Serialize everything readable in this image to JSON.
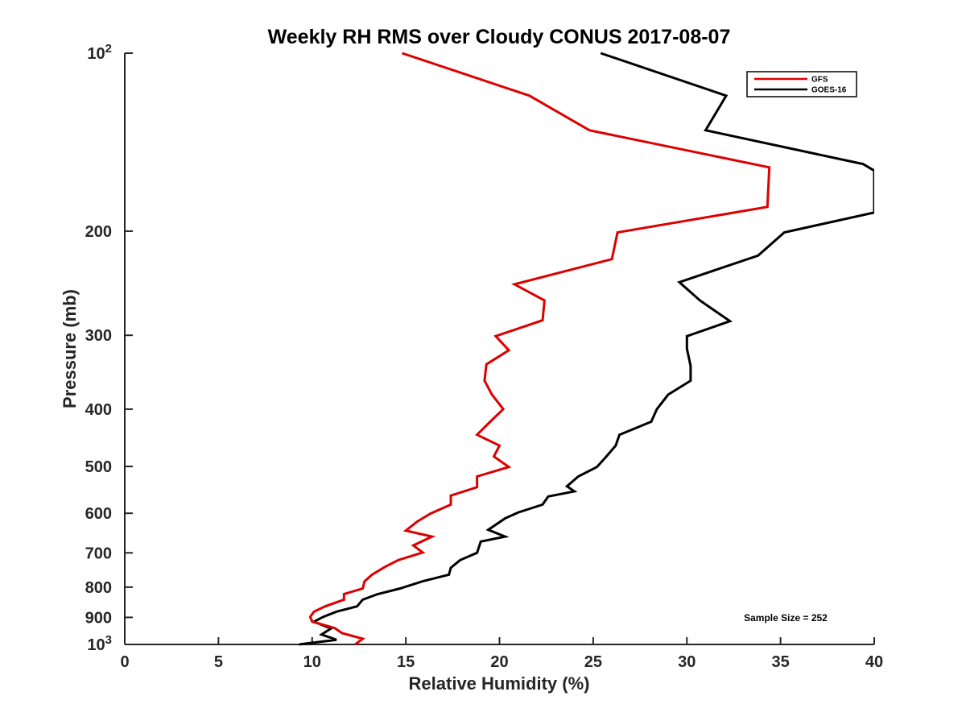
{
  "chart_data": {
    "type": "line",
    "title": "Weekly RH RMS over Cloudy CONUS 2017-08-07",
    "xlabel": "Relative Humidity (%)",
    "ylabel": "Pressure (mb)",
    "xlim": [
      0,
      40
    ],
    "ylim": [
      100,
      1000
    ],
    "y_scale": "log",
    "y_reversed": true,
    "grid": false,
    "legend_position": "top-right",
    "x_ticks": [
      0,
      5,
      10,
      15,
      20,
      25,
      30,
      35,
      40
    ],
    "x_tick_labels": [
      "0",
      "5",
      "10",
      "15",
      "20",
      "25",
      "30",
      "35",
      "40"
    ],
    "y_ticks": [
      100,
      200,
      300,
      400,
      500,
      600,
      700,
      800,
      900,
      1000
    ],
    "y_tick_labels": [
      {
        "base": "10",
        "exp": "2"
      },
      {
        "base": "200",
        "exp": ""
      },
      {
        "base": "300",
        "exp": ""
      },
      {
        "base": "400",
        "exp": ""
      },
      {
        "base": "500",
        "exp": ""
      },
      {
        "base": "600",
        "exp": ""
      },
      {
        "base": "700",
        "exp": ""
      },
      {
        "base": "800",
        "exp": ""
      },
      {
        "base": "900",
        "exp": ""
      },
      {
        "base": "10",
        "exp": "3"
      }
    ],
    "annotation": "Sample Size = 252",
    "series": [
      {
        "name": "GFS",
        "color": "#dd0000",
        "points": [
          [
            14.8,
            100
          ],
          [
            21.6,
            118
          ],
          [
            24.8,
            135
          ],
          [
            34.4,
            156
          ],
          [
            34.3,
            182
          ],
          [
            26.3,
            201
          ],
          [
            26.0,
            223
          ],
          [
            20.8,
            246
          ],
          [
            22.4,
            262
          ],
          [
            22.3,
            283
          ],
          [
            19.8,
            301
          ],
          [
            20.5,
            318
          ],
          [
            19.3,
            336
          ],
          [
            19.2,
            358
          ],
          [
            19.6,
            378
          ],
          [
            20.2,
            400
          ],
          [
            19.5,
            420
          ],
          [
            18.8,
            442
          ],
          [
            20.0,
            461
          ],
          [
            19.7,
            481
          ],
          [
            20.5,
            501
          ],
          [
            18.8,
            520
          ],
          [
            18.8,
            542
          ],
          [
            17.4,
            560
          ],
          [
            17.4,
            580
          ],
          [
            16.3,
            601
          ],
          [
            15.6,
            620
          ],
          [
            15.0,
            642
          ],
          [
            16.4,
            657
          ],
          [
            15.4,
            680
          ],
          [
            15.9,
            699
          ],
          [
            14.6,
            720
          ],
          [
            13.9,
            739
          ],
          [
            13.2,
            762
          ],
          [
            12.8,
            782
          ],
          [
            12.7,
            804
          ],
          [
            11.7,
            822
          ],
          [
            11.7,
            840
          ],
          [
            10.7,
            862
          ],
          [
            10.1,
            880
          ],
          [
            9.9,
            898
          ],
          [
            10.0,
            915
          ],
          [
            11.2,
            938
          ],
          [
            11.6,
            957
          ],
          [
            12.7,
            978
          ],
          [
            12.3,
            1000
          ]
        ]
      },
      {
        "name": "GOES-16",
        "color": "#000000",
        "points": [
          [
            25.4,
            100
          ],
          [
            32.1,
            118
          ],
          [
            31.0,
            135
          ],
          [
            39.4,
            154
          ],
          [
            40.0,
            158
          ],
          [
            40.0,
            186
          ],
          [
            35.2,
            201
          ],
          [
            33.8,
            220
          ],
          [
            29.6,
            244
          ],
          [
            30.7,
            262
          ],
          [
            32.3,
            284
          ],
          [
            30.0,
            301
          ],
          [
            30.0,
            316
          ],
          [
            30.2,
            338
          ],
          [
            30.2,
            358
          ],
          [
            29.0,
            378
          ],
          [
            28.4,
            400
          ],
          [
            28.1,
            420
          ],
          [
            26.4,
            442
          ],
          [
            26.2,
            461
          ],
          [
            25.7,
            481
          ],
          [
            25.2,
            501
          ],
          [
            24.2,
            520
          ],
          [
            23.6,
            540
          ],
          [
            24.0,
            551
          ],
          [
            22.6,
            562
          ],
          [
            22.3,
            580
          ],
          [
            21.0,
            598
          ],
          [
            20.3,
            612
          ],
          [
            19.4,
            640
          ],
          [
            20.3,
            657
          ],
          [
            19.0,
            670
          ],
          [
            18.8,
            700
          ],
          [
            17.9,
            720
          ],
          [
            17.4,
            742
          ],
          [
            17.3,
            762
          ],
          [
            15.9,
            782
          ],
          [
            14.7,
            804
          ],
          [
            13.5,
            822
          ],
          [
            12.7,
            840
          ],
          [
            12.4,
            862
          ],
          [
            11.3,
            880
          ],
          [
            10.6,
            898
          ],
          [
            10.1,
            915
          ],
          [
            11.0,
            940
          ],
          [
            10.5,
            962
          ],
          [
            11.3,
            982
          ],
          [
            9.3,
            1000
          ]
        ]
      }
    ]
  }
}
